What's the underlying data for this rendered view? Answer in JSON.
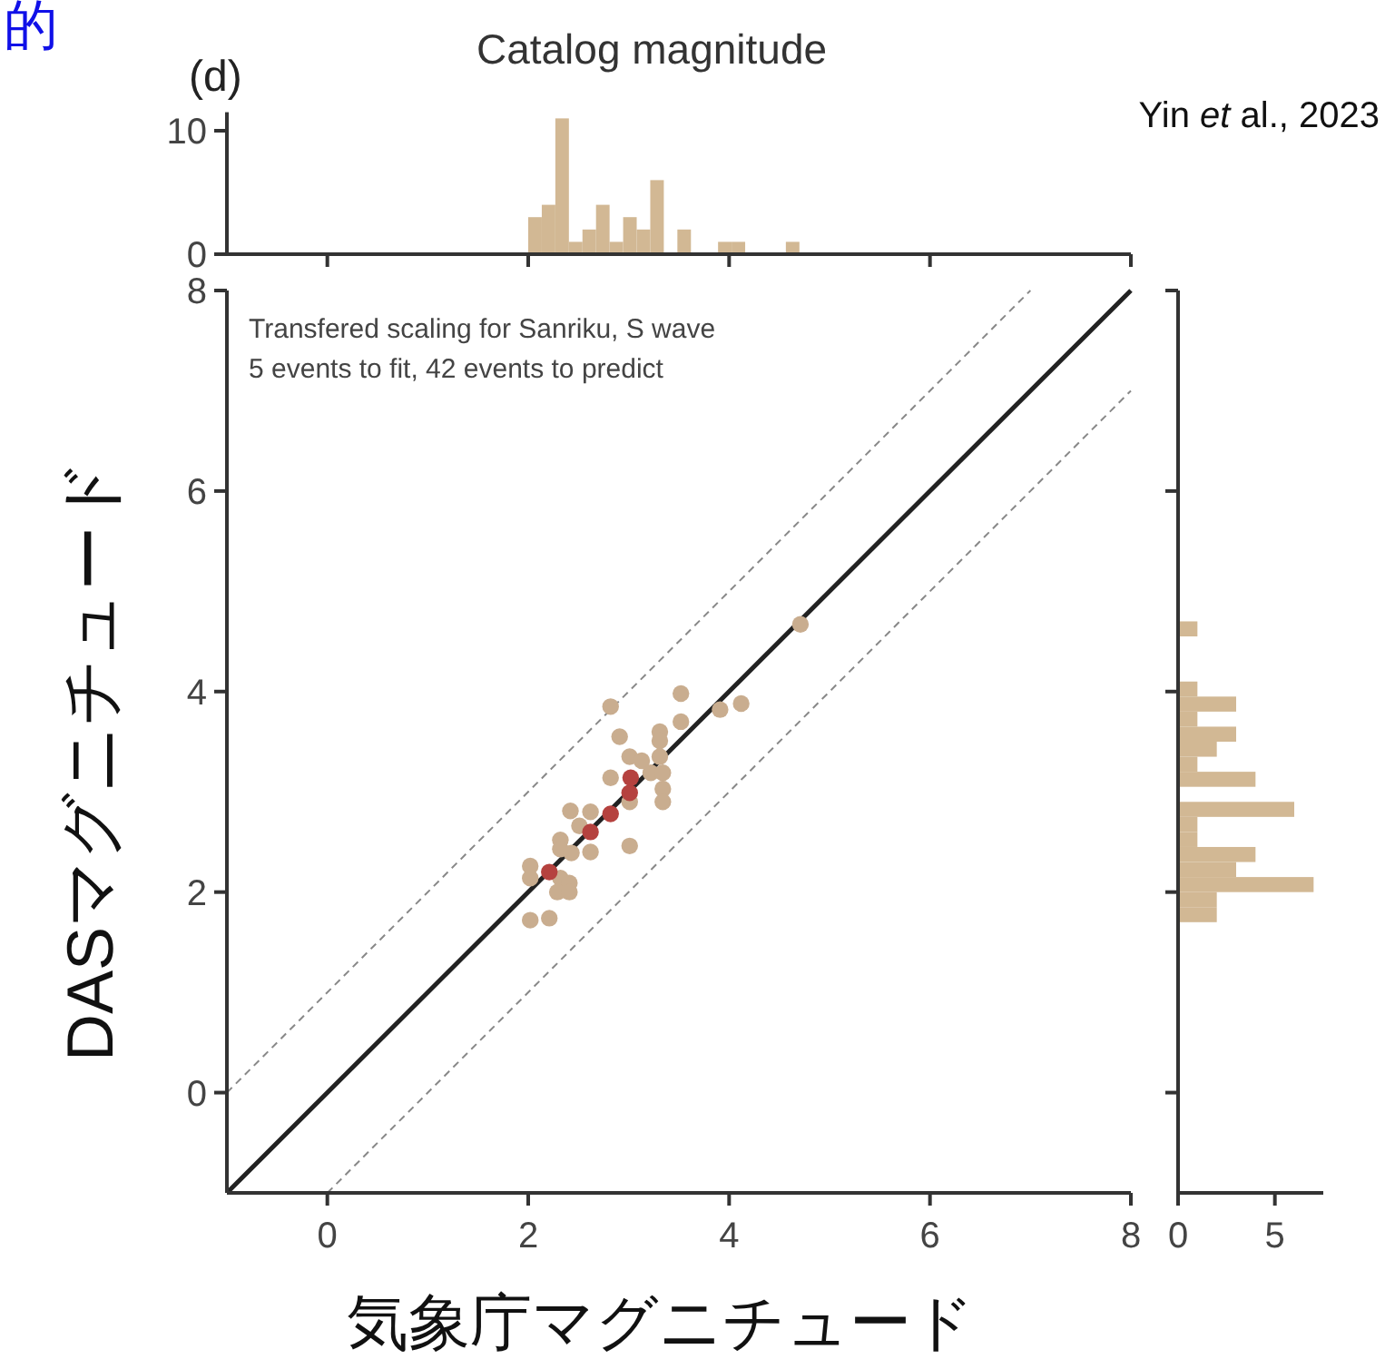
{
  "chart_data": [
    {
      "type": "histogram",
      "title": "Catalog magnitude",
      "annotations": [
        "(d)",
        "Yin *et* al., 2023",
        "的"
      ],
      "bins": [
        2.0,
        2.135,
        2.27,
        2.405,
        2.54,
        2.675,
        2.81,
        2.945,
        3.08,
        3.215,
        3.35,
        3.485,
        3.62,
        3.755,
        3.89,
        4.025,
        4.16,
        4.295,
        4.43,
        4.565,
        4.7
      ],
      "values": [
        3,
        4,
        11,
        1,
        2,
        4,
        1,
        3,
        2,
        6,
        0,
        2,
        0,
        0,
        1,
        1,
        0,
        0,
        0,
        1
      ],
      "color": "#d2b894",
      "xlim": [
        -1,
        8
      ],
      "xticks": [
        {
          "value": 0,
          "label": null
        },
        {
          "value": 2,
          "label": null
        },
        {
          "value": 4,
          "label": null
        },
        {
          "value": 6,
          "label": null
        },
        {
          "value": 8,
          "label": null
        }
      ],
      "ylim": [
        0,
        11.5
      ],
      "yticks": [
        0,
        10
      ],
      "tick_labels": "y"
    },
    {
      "type": "scatter",
      "xlabel": "気象庁マグニチュード",
      "ylabel": "DASマグニチュード",
      "annotations": [
        "Transfered scaling for Sanriku, S wave",
        "5 events to fit, 42 events to predict"
      ],
      "series": [
        {
          "type": "line",
          "marker": "none",
          "color": "#222222",
          "line_style": "solid",
          "x": [
            -1,
            8
          ],
          "values": [
            -1,
            8
          ]
        },
        {
          "type": "line",
          "marker": "none",
          "color": "#888888",
          "line_style": "dashed",
          "x": [
            -1,
            7
          ],
          "values": [
            0,
            8
          ]
        },
        {
          "type": "line",
          "marker": "none",
          "color": "#888888",
          "line_style": "dashed",
          "x": [
            0,
            8
          ],
          "values": [
            -1,
            7
          ]
        },
        {
          "color": "#c9ad8f",
          "x": [
            2.82,
            3.52,
            3.52,
            3.91,
            4.12,
            2.91,
            3.31,
            3.31,
            3.01,
            3.31,
            3.13,
            3.22,
            3.34,
            2.82,
            3.34,
            3.34,
            3.01,
            2.42,
            2.62,
            2.51,
            2.32,
            2.32,
            2.62,
            3.01,
            2.02,
            2.02,
            2.32,
            2.41,
            2.29,
            2.41,
            2.02,
            2.21,
            2.43,
            4.71
          ],
          "values": [
            3.85,
            3.98,
            3.7,
            3.82,
            3.88,
            3.55,
            3.6,
            3.51,
            3.35,
            3.35,
            3.31,
            3.19,
            3.19,
            3.14,
            3.03,
            2.9,
            2.9,
            2.81,
            2.8,
            2.66,
            2.52,
            2.43,
            2.4,
            2.46,
            2.26,
            2.14,
            2.14,
            2.09,
            2.0,
            2.0,
            1.72,
            1.74,
            2.39,
            4.67
          ]
        },
        {
          "color": "#b5423f",
          "x": [
            2.21,
            2.62,
            2.82,
            3.01,
            3.02
          ],
          "values": [
            2.2,
            2.6,
            2.78,
            2.99,
            3.14
          ]
        }
      ],
      "marker": "circle",
      "xlim": [
        -1,
        8
      ],
      "ylim": [
        -1,
        8
      ],
      "xticks": [
        0,
        2,
        4,
        6,
        8
      ],
      "yticks": [
        0,
        2,
        4,
        6,
        8
      ]
    },
    {
      "type": "histogram",
      "orientation": "horizontal",
      "bins": [
        1.7,
        1.85,
        2.0,
        2.15,
        2.3,
        2.45,
        2.6,
        2.75,
        2.9,
        3.05,
        3.2,
        3.35,
        3.5,
        3.65,
        3.8,
        3.95,
        4.1,
        4.25,
        4.4,
        4.55,
        4.7
      ],
      "values": [
        2,
        2,
        7,
        3,
        4,
        1,
        1,
        6,
        0,
        4,
        1,
        2,
        3,
        1,
        3,
        1,
        0,
        0,
        0,
        1
      ],
      "color": "#d2b894",
      "xlim": [
        0,
        7.5
      ],
      "xticks": [
        0,
        5
      ],
      "ylim": [
        -1,
        8
      ],
      "yticks": [
        {
          "value": 0,
          "label": null
        },
        {
          "value": 2,
          "label": null
        },
        {
          "value": 4,
          "label": null
        },
        {
          "value": 6,
          "label": null
        },
        {
          "value": 8,
          "label": null
        }
      ],
      "tick_labels": "x"
    }
  ]
}
